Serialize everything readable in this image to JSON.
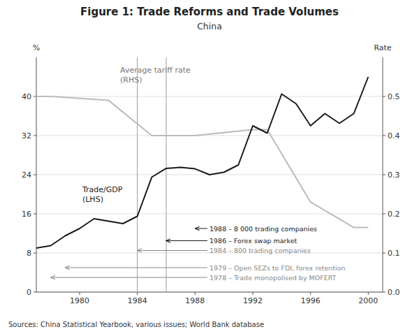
{
  "chart_data": {
    "type": "line",
    "title": "Figure 1: Trade Reforms and Trade Volumes",
    "subtitle": "China",
    "sources": "Sources:\tChina Statistical Yearbook, various issues; World Bank database",
    "ylabel": "%",
    "y2label": "Rate",
    "xlim": [
      1977,
      2001
    ],
    "xticks": [
      1980,
      1984,
      1988,
      1992,
      1996,
      2000
    ],
    "ylim": [
      0,
      48
    ],
    "yticks": [
      0,
      8,
      16,
      24,
      32,
      40
    ],
    "y2lim": [
      0.0,
      0.6
    ],
    "y2ticks": [
      {
        "value": 0.0,
        "label": "0.0"
      },
      0.1,
      0.2,
      0.3,
      0.4,
      0.5
    ],
    "grid": true,
    "series": [
      {
        "name": "Trade/GDP\n(LHS)",
        "color": "#1a1a1a",
        "x": [
          1977,
          1978,
          1979,
          1980,
          1981,
          1982,
          1983,
          1984,
          1985,
          1986,
          1987,
          1988,
          1989,
          1990,
          1991,
          1992,
          1993,
          1994,
          1995,
          1996,
          1997,
          1998,
          1999,
          2000
        ],
        "values": [
          9.0,
          9.5,
          11.5,
          13.0,
          15.0,
          14.5,
          14.0,
          15.5,
          23.5,
          25.3,
          25.5,
          25.2,
          24.0,
          24.5,
          26.0,
          34.0,
          32.5,
          40.5,
          38.5,
          34.0,
          36.5,
          34.5,
          36.5,
          44.0
        ]
      },
      {
        "name": "Average tariff rate\n(RHS)",
        "color": "#bbbbbb",
        "axis": "y2",
        "x": [
          1977,
          1978,
          1982,
          1985,
          1986,
          1988,
          1992,
          1993,
          1996,
          1999,
          2000
        ],
        "values": [
          0.5,
          0.5,
          0.49,
          0.4,
          0.4,
          0.4,
          0.415,
          0.415,
          0.23,
          0.165,
          0.165
        ]
      }
    ],
    "vlines": [
      1984,
      1986
    ],
    "annotations": [
      {
        "text": "1988 – 8 000 trading companies",
        "x": 1988,
        "y": 13.0,
        "color": "#1a1a1a"
      },
      {
        "text": "1986 – Forex swap market",
        "x": 1986,
        "y": 10.5,
        "color": "#1a1a1a"
      },
      {
        "text": "1984 – 800 trading companies",
        "x": 1984,
        "y": 8.5,
        "color": "#888888"
      },
      {
        "text": "1979 – Open SEZs to FDI, forex retention",
        "x": 1979,
        "y": 5.0,
        "color": "#888888"
      },
      {
        "text": "1978 – Trade monopolised by MOFERT",
        "x": 1978,
        "y": 3.0,
        "color": "#888888"
      }
    ]
  }
}
